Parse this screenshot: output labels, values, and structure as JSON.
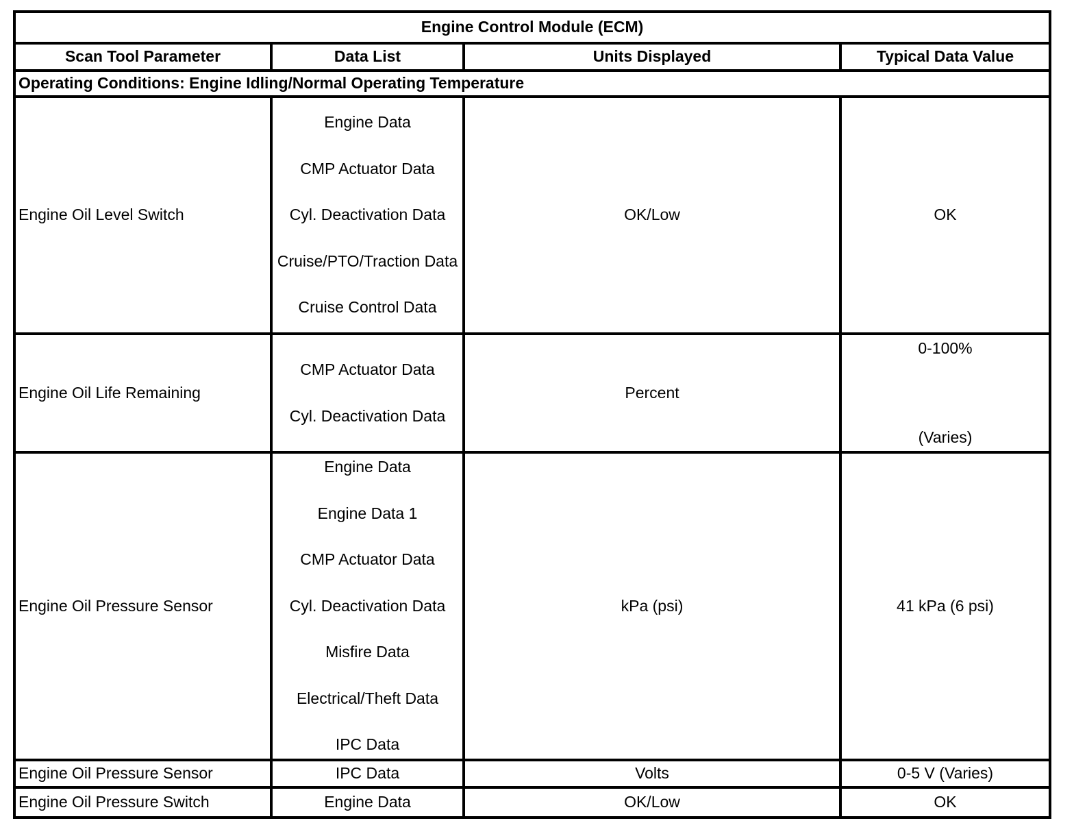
{
  "table": {
    "title": "Engine Control Module (ECM)",
    "columns": {
      "parameter": "Scan Tool Parameter",
      "data_list": "Data List",
      "units": "Units Displayed",
      "typical": "Typical Data Value"
    },
    "operating_conditions": "Operating Conditions: Engine Idling/Normal Operating Temperature",
    "rows": [
      {
        "parameter": "Engine Oil Level Switch",
        "data_list": [
          "Engine Data",
          "CMP Actuator Data",
          "Cyl. Deactivation Data",
          "Cruise/PTO/Traction Data",
          "Cruise Control Data"
        ],
        "units": "OK/Low",
        "typical": "OK"
      },
      {
        "parameter": "Engine Oil Life Remaining",
        "data_list": [
          "CMP Actuator Data",
          "Cyl. Deactivation Data"
        ],
        "units": "Percent",
        "typical_top": "0-100%",
        "typical_bottom": "(Varies)"
      },
      {
        "parameter": "Engine Oil Pressure Sensor",
        "data_list": [
          "Engine Data",
          "Engine Data 1",
          "CMP Actuator Data",
          "Cyl. Deactivation Data",
          "Misfire Data",
          "Electrical/Theft Data",
          "IPC Data"
        ],
        "units": "kPa (psi)",
        "typical": "41 kPa (6 psi)"
      },
      {
        "parameter": "Engine Oil Pressure Sensor",
        "data_list": [
          "IPC Data"
        ],
        "units": "Volts",
        "typical": "0-5 V (Varies)"
      },
      {
        "parameter": "Engine Oil Pressure Switch",
        "data_list": [
          "Engine Data"
        ],
        "units": "OK/Low",
        "typical": "OK"
      }
    ],
    "colors": {
      "text": "#000000",
      "background": "#ffffff",
      "border": "#000000"
    }
  }
}
